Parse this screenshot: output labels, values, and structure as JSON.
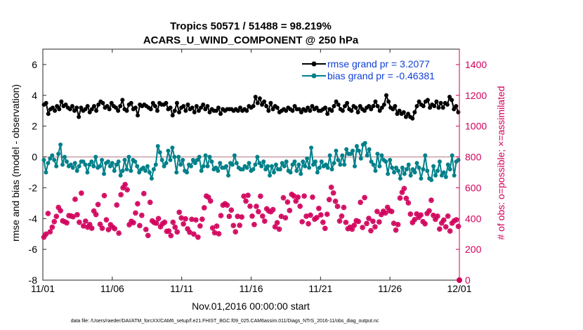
{
  "chart_data": {
    "type": "line",
    "title_line1": "Tropics 50571 / 51488 = 98.219%",
    "title_line2": "ACARS_U_WIND_COMPONENT @ 250 hPa",
    "xlabel": "Nov.01,2016 00:00:00 start",
    "ylabel_left": "rmse and bias (model - observation)",
    "ylabel_right": "# of obs: o=possible; ×=assimilated",
    "footnote": "data file: /Users/raeder/DAI/ATM_forcXX/CAM6_setup/f.e21.FHIST_BGC.f09_025.CAM6assim.011/Diags_NTrS_2016-11/obs_diag_output.nc",
    "xlim": [
      0,
      30
    ],
    "ylim_left": [
      -8,
      7
    ],
    "ylim_right": [
      0,
      1500
    ],
    "x_tick_values": [
      0,
      5,
      10,
      15,
      20,
      25,
      30
    ],
    "x_tick_labels": [
      "11/01",
      "11/06",
      "11/11",
      "11/16",
      "11/21",
      "11/26",
      "12/01"
    ],
    "y_left_ticks": [
      -8,
      -6,
      -4,
      -2,
      0,
      2,
      4,
      6
    ],
    "y_right_ticks": [
      0,
      200,
      400,
      600,
      800,
      1000,
      1200,
      1400
    ],
    "legend": [
      {
        "label": "rmse grand pr = 3.2077",
        "color": "#000000"
      },
      {
        "label": "bias grand pr = -0.46381",
        "color": "#00808a"
      }
    ],
    "series": [
      {
        "name": "rmse",
        "color": "#000000",
        "values": [
          3.4,
          3.5,
          2.8,
          3.1,
          3.2,
          3.0,
          3.3,
          3.1,
          3.6,
          3.3,
          3.4,
          3.2,
          3.1,
          3.3,
          3.0,
          3.2,
          2.6,
          3.2,
          3.0,
          3.1,
          3.3,
          2.9,
          3.1,
          3.3,
          3.0,
          3.4,
          3.6,
          3.5,
          3.2,
          3.3,
          3.1,
          3.5,
          3.3,
          3.2,
          3.0,
          3.3,
          3.7,
          3.1,
          3.0,
          3.4,
          3.5,
          3.1,
          3.2,
          2.7,
          3.4,
          3.3,
          3.4,
          3.3,
          3.2,
          3.1,
          3.5,
          3.3,
          3.0,
          3.5,
          3.4,
          3.4,
          3.5,
          3.1,
          3.2,
          2.7,
          3.0,
          3.5,
          2.9,
          3.2,
          3.3,
          3.0,
          3.4,
          3.1,
          3.2,
          2.9,
          3.3,
          3.0,
          3.2,
          3.4,
          3.1,
          3.3,
          2.9,
          3.1,
          3.0,
          3.0,
          3.2,
          2.8,
          3.1,
          3.0,
          3.1,
          3.1,
          3.1,
          3.0,
          3.1,
          3.0,
          3.2,
          3.0,
          3.1,
          3.0,
          3.3,
          3.2,
          3.3,
          3.9,
          3.5,
          3.8,
          3.4,
          3.6,
          3.3,
          3.0,
          3.5,
          3.1,
          3.3,
          3.2,
          2.9,
          3.0,
          3.1,
          3.0,
          3.2,
          3.1,
          3.0,
          3.3,
          3.1,
          3.1,
          2.9,
          3.1,
          3.0,
          3.2,
          3.0,
          3.3,
          3.1,
          3.2,
          3.0,
          3.0,
          3.1,
          3.2,
          2.8,
          3.1,
          3.0,
          3.3,
          3.6,
          3.4,
          3.1,
          3.0,
          3.3,
          3.5,
          3.1,
          3.0,
          3.3,
          3.2,
          2.9,
          3.3,
          3.1,
          3.0,
          3.2,
          3.3,
          3.1,
          3.3,
          3.6,
          3.3,
          3.0,
          3.2,
          3.4,
          4.0,
          3.6,
          3.2,
          3.1,
          3.3,
          2.8,
          3.0,
          2.8,
          2.9,
          2.6,
          2.8,
          2.6,
          2.5,
          2.9,
          3.3,
          3.6,
          3.4,
          3.3,
          3.6,
          3.7,
          3.2,
          3.4,
          3.3,
          3.6,
          3.2,
          3.5,
          3.2,
          3.5,
          3.4,
          3.9,
          3.7,
          3.1,
          3.3,
          2.9
        ]
      },
      {
        "name": "bias",
        "color": "#00808a",
        "values": [
          -0.2,
          -1.0,
          -0.4,
          -0.1,
          0.1,
          -0.2,
          -0.6,
          0.2,
          0.8,
          -0.5,
          0.0,
          -0.3,
          -0.6,
          -0.5,
          -0.7,
          -0.4,
          -0.9,
          -0.6,
          -0.3,
          -0.3,
          -0.5,
          -1.0,
          -0.5,
          -0.3,
          -0.6,
          0.0,
          -0.7,
          -0.6,
          -0.2,
          -1.1,
          -0.4,
          -0.3,
          -0.6,
          -0.4,
          -0.9,
          -0.5,
          -0.3,
          -1.2,
          -0.9,
          -0.2,
          -0.8,
          0.0,
          -0.9,
          -0.2,
          -0.3,
          -0.6,
          -1.0,
          -0.8,
          -0.7,
          -0.9,
          -0.6,
          -1.0,
          -1.4,
          -0.8,
          -0.5,
          0.7,
          0.3,
          -0.2,
          -0.6,
          -0.4,
          0.4,
          -0.2,
          0.6,
          0.0,
          -1.0,
          0.0,
          -0.5,
          -0.2,
          -0.9,
          -1.0,
          -0.5,
          -0.6,
          -0.2,
          -0.4,
          -0.2,
          0.0,
          -0.9,
          -0.6,
          0.1,
          -0.6,
          0.0,
          -0.3,
          -0.8,
          -0.7,
          -0.9,
          -0.4,
          -0.7,
          -0.7,
          -0.6,
          -1.2,
          -0.4,
          -0.5,
          0.1,
          -0.4,
          -0.7,
          -0.8,
          -0.8,
          -0.6,
          -0.7,
          -0.4,
          -0.9,
          -0.8,
          -0.5,
          0.0,
          -0.4,
          -0.6,
          -0.3,
          -0.8,
          -0.6,
          -1.2,
          -0.6,
          -1.0,
          -0.5,
          -0.8,
          -0.8,
          -0.4,
          -0.6,
          -0.3,
          -0.9,
          -1.0,
          -0.5,
          -0.3,
          -0.9,
          -0.5,
          -1.1,
          -0.3,
          -0.6,
          -0.1,
          -0.7,
          0.6,
          -0.5,
          -0.3,
          -1.0,
          -0.7,
          -0.3,
          -0.6,
          -0.5,
          -0.7,
          0.1,
          -0.8,
          -0.4,
          0.4,
          -0.2,
          -0.5,
          0.1,
          -0.5,
          0.5,
          0.2,
          0.2,
          0.4,
          -0.6,
          0.7,
          0.4,
          -0.1,
          0.8,
          0.9,
          0.1,
          0.5,
          -0.3,
          -0.5,
          -0.9,
          0.2,
          -0.6,
          0.1,
          -0.2,
          -0.3,
          -1.1,
          -0.2,
          -0.7,
          -1.0,
          -0.7,
          -0.9,
          -1.4,
          -0.7,
          -1.1,
          -0.8,
          -0.5,
          -1.2,
          -0.8,
          -1.0,
          -0.4,
          -0.7,
          -1.4,
          -0.8,
          0.1,
          -0.9,
          -1.4,
          -1.5,
          -0.6,
          -1.2,
          -0.9,
          -0.3,
          -1.2,
          -1.0,
          -1.3,
          -0.5,
          -0.8,
          0.1,
          -1.2,
          -0.3,
          -0.2
        ]
      }
    ],
    "obs_counts": [
      279,
      299,
      433,
      314,
      344,
      380,
      414,
      472,
      451,
      385,
      379,
      372,
      419,
      417,
      412,
      525,
      425,
      376,
      565,
      352,
      383,
      344,
      361,
      337,
      449,
      426,
      491,
      363,
      337,
      549,
      392,
      328,
      360,
      345,
      334,
      488,
      305,
      555,
      600,
      621,
      587,
      360,
      382,
      373,
      436,
      496,
      354,
      421,
      562,
      329,
      290,
      505,
      385,
      374,
      370,
      400,
      347,
      367,
      376,
      317,
      319,
      289,
      376,
      344,
      313,
      441,
      404,
      365,
      398,
      333,
      311,
      395,
      299,
      391,
      279,
      352,
      396,
      470,
      546,
      538,
      514,
      339,
      308,
      351,
      301,
      419,
      487,
      496,
      487,
      414,
      455,
      355,
      314,
      414,
      356,
      410,
      545,
      513,
      551,
      480,
      416,
      361,
      479,
      445,
      545,
      416,
      383,
      463,
      449,
      444,
      458,
      346,
      373,
      331,
      414,
      535,
      405,
      507,
      452,
      557,
      547,
      513,
      539,
      480,
      379,
      546,
      415,
      366,
      422,
      539,
      396,
      406,
      466,
      424,
      376,
      336,
      428,
      523,
      603,
      566,
      512,
      479,
      384,
      416,
      472,
      375,
      334,
      344,
      331,
      356,
      386,
      381,
      505,
      342,
      536,
      368,
      401,
      321,
      382,
      346,
      446,
      378,
      426,
      447,
      436,
      473,
      451,
      446,
      369,
      325,
      361,
      533,
      570,
      595,
      531,
      502,
      429,
      374,
      393,
      430,
      408,
      423,
      380,
      366,
      433,
      450,
      519,
      421,
      395,
      415,
      332,
      371,
      390,
      346,
      416,
      319,
      370,
      385,
      392,
      349
    ]
  }
}
